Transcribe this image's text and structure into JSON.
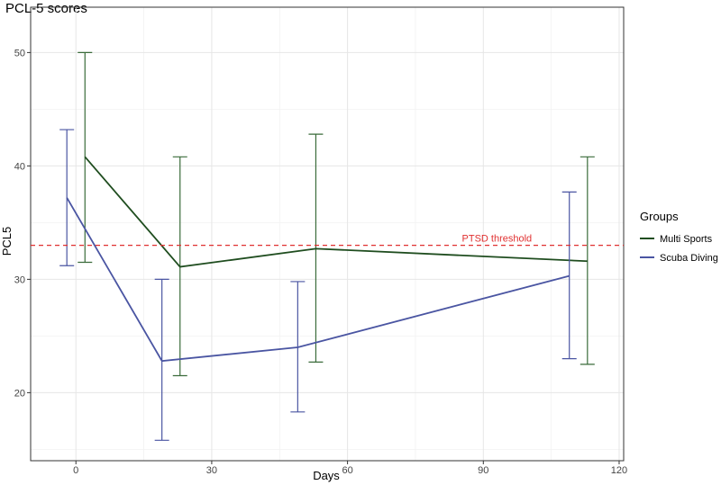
{
  "chart_data": {
    "type": "line",
    "title": "PCL-5 scores",
    "xlabel": "Days",
    "ylabel": "PCL5",
    "xlim": [
      -10,
      121
    ],
    "ylim": [
      14,
      54
    ],
    "x_ticks": [
      0,
      30,
      60,
      90,
      120
    ],
    "y_ticks": [
      20,
      30,
      40,
      50
    ],
    "grid": true,
    "legend": {
      "title": "Groups",
      "placement": "right",
      "entries": [
        "Multi Sports",
        "Scuba Diving"
      ]
    },
    "series": [
      {
        "name": "Multi Sports",
        "color": "#1f4d1f",
        "errorbar_color": "#3a6b3a",
        "points": [
          {
            "x": 2,
            "y": 40.8,
            "ymin": 31.5,
            "ymax": 50.0
          },
          {
            "x": 23,
            "y": 31.1,
            "ymin": 21.5,
            "ymax": 40.8
          },
          {
            "x": 53,
            "y": 32.7,
            "ymin": 22.7,
            "ymax": 42.8
          },
          {
            "x": 113,
            "y": 31.6,
            "ymin": 22.5,
            "ymax": 40.8
          }
        ]
      },
      {
        "name": "Scuba Diving",
        "color": "#4a55a2",
        "errorbar_color": "#4a55a2",
        "points": [
          {
            "x": -2,
            "y": 37.2,
            "ymin": 31.2,
            "ymax": 43.2
          },
          {
            "x": 19,
            "y": 22.8,
            "ymin": 15.8,
            "ymax": 30.0
          },
          {
            "x": 49,
            "y": 24.0,
            "ymin": 18.3,
            "ymax": 29.8
          },
          {
            "x": 109,
            "y": 30.3,
            "ymin": 23.0,
            "ymax": 37.7
          }
        ]
      }
    ],
    "annotations": [
      {
        "type": "hline",
        "y": 33,
        "color": "#e03030",
        "dashed": true,
        "label": "PTSD threshold",
        "label_x": 93
      }
    ]
  }
}
